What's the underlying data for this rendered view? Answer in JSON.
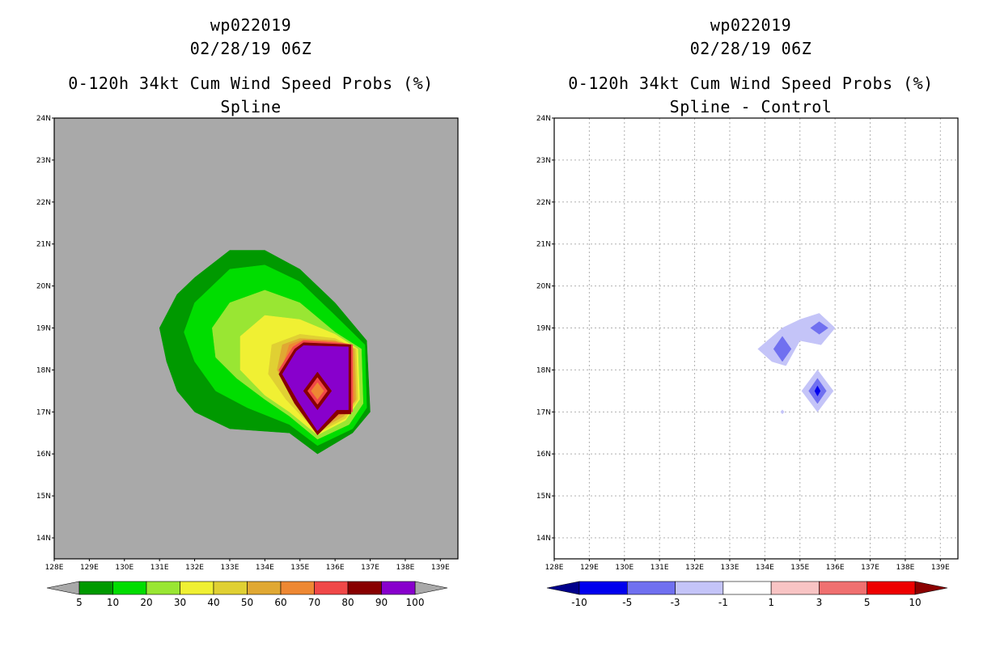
{
  "left_panel": {
    "storm_id": "wp022019",
    "datetime": "02/28/19 06Z",
    "product": "0-120h 34kt Cum Wind Speed Probs (%)",
    "subtitle": "Spline"
  },
  "right_panel": {
    "storm_id": "wp022019",
    "datetime": "02/28/19 06Z",
    "product": "0-120h 34kt Cum Wind Speed Probs (%)",
    "subtitle": "Spline - Control"
  },
  "colors": {
    "land_gray": "#a9a9a9",
    "grid": "#b0b0b0"
  },
  "chart_data": [
    {
      "type": "heatmap",
      "title": "0-120h 34kt Cum Wind Speed Probs (%) Spline",
      "x_ticks": [
        "128E",
        "129E",
        "130E",
        "131E",
        "132E",
        "133E",
        "134E",
        "135E",
        "136E",
        "137E",
        "138E",
        "139E"
      ],
      "y_ticks": [
        "14N",
        "15N",
        "16N",
        "17N",
        "18N",
        "19N",
        "20N",
        "21N",
        "22N",
        "23N",
        "24N"
      ],
      "xlim": [
        128,
        139.5
      ],
      "ylim": [
        13.5,
        24
      ],
      "grid": false,
      "colorbar": {
        "levels": [
          "5",
          "10",
          "20",
          "30",
          "40",
          "50",
          "60",
          "70",
          "80",
          "90",
          "100"
        ],
        "colors": [
          "#009900",
          "#00dd00",
          "#99e633",
          "#f0f033",
          "#e0d033",
          "#e0a833",
          "#ee8833",
          "#f04848",
          "#880000",
          "#8800cc"
        ],
        "lower_color": "#a9a9a9",
        "upper_color": "#a9a9a9"
      },
      "contours": [
        {
          "level": 5,
          "color": "#009900",
          "points": [
            [
              131,
              19
            ],
            [
              131.5,
              19.8
            ],
            [
              132,
              20.2
            ],
            [
              133,
              20.85
            ],
            [
              134,
              20.85
            ],
            [
              135,
              20.4
            ],
            [
              136,
              19.6
            ],
            [
              136.9,
              18.7
            ],
            [
              137,
              17
            ],
            [
              136.5,
              16.5
            ],
            [
              135.5,
              16
            ],
            [
              134.7,
              16.5
            ],
            [
              133,
              16.6
            ],
            [
              132,
              17
            ],
            [
              131.5,
              17.5
            ],
            [
              131.2,
              18.2
            ]
          ]
        },
        {
          "level": 10,
          "color": "#00dd00",
          "points": [
            [
              131.7,
              18.9
            ],
            [
              132,
              19.6
            ],
            [
              133,
              20.4
            ],
            [
              134,
              20.5
            ],
            [
              135,
              20.1
            ],
            [
              136,
              19.3
            ],
            [
              136.85,
              18.6
            ],
            [
              136.9,
              17.1
            ],
            [
              136.5,
              16.6
            ],
            [
              135.5,
              16.2
            ],
            [
              134.7,
              16.7
            ],
            [
              133.5,
              17.1
            ],
            [
              132.6,
              17.5
            ],
            [
              132,
              18.2
            ]
          ]
        },
        {
          "level": 20,
          "color": "#99e633",
          "points": [
            [
              132.5,
              19
            ],
            [
              133,
              19.6
            ],
            [
              134,
              19.9
            ],
            [
              135,
              19.6
            ],
            [
              136,
              18.9
            ],
            [
              136.75,
              18.5
            ],
            [
              136.8,
              17.2
            ],
            [
              136.4,
              16.7
            ],
            [
              135.5,
              16.35
            ],
            [
              134.7,
              16.9
            ],
            [
              134,
              17.3
            ],
            [
              133.2,
              17.8
            ],
            [
              132.6,
              18.3
            ]
          ]
        },
        {
          "level": 30,
          "color": "#f0f033",
          "points": [
            [
              133.3,
              18.8
            ],
            [
              134,
              19.3
            ],
            [
              135,
              19.2
            ],
            [
              136,
              18.85
            ],
            [
              136.65,
              18.5
            ],
            [
              136.7,
              17.3
            ],
            [
              136.3,
              16.8
            ],
            [
              135.5,
              16.45
            ],
            [
              134.7,
              17
            ],
            [
              134,
              17.4
            ],
            [
              133.3,
              18
            ]
          ]
        },
        {
          "level": 40,
          "color": "#e0d033",
          "points": [
            [
              134.2,
              18.6
            ],
            [
              135,
              18.85
            ],
            [
              136,
              18.75
            ],
            [
              136.6,
              18.5
            ],
            [
              136.65,
              17.3
            ],
            [
              136.3,
              16.85
            ],
            [
              135.5,
              16.5
            ],
            [
              134.6,
              17.3
            ],
            [
              134.1,
              17.9
            ]
          ]
        },
        {
          "level": 50,
          "color": "#e0a833",
          "points": [
            [
              134.5,
              18.6
            ],
            [
              135,
              18.75
            ],
            [
              136,
              18.7
            ],
            [
              136.55,
              18.5
            ],
            [
              136.6,
              17.3
            ],
            [
              136.25,
              16.9
            ],
            [
              135.5,
              16.55
            ],
            [
              134.8,
              17.3
            ],
            [
              134.35,
              18
            ]
          ]
        },
        {
          "level": 60,
          "color": "#ee8833",
          "points": [
            [
              134.7,
              18.6
            ],
            [
              135.1,
              18.72
            ],
            [
              136,
              18.68
            ],
            [
              136.5,
              18.6
            ],
            [
              136.55,
              17.25
            ],
            [
              136.2,
              16.95
            ],
            [
              135.5,
              16.6
            ],
            [
              134.8,
              17.3
            ],
            [
              134.45,
              17.95
            ]
          ]
        },
        {
          "level": 70,
          "color": "#f04848",
          "points": [
            [
              134.8,
              18.55
            ],
            [
              135.1,
              18.7
            ],
            [
              136,
              18.65
            ],
            [
              136.5,
              18.6
            ],
            [
              136.5,
              17
            ],
            [
              136.15,
              16.98
            ],
            [
              135.5,
              16.65
            ],
            [
              134.8,
              17.3
            ],
            [
              134.4,
              18
            ]
          ]
        },
        {
          "level": 80,
          "color": "#880000",
          "points": [
            [
              134.85,
              18.5
            ],
            [
              135.1,
              18.65
            ],
            [
              136.45,
              18.6
            ],
            [
              136.45,
              16.95
            ],
            [
              136.1,
              16.95
            ],
            [
              135.5,
              16.45
            ],
            [
              134.85,
              17.2
            ],
            [
              134.4,
              17.9
            ]
          ]
        },
        {
          "level": 90,
          "color": "#8800cc",
          "points": [
            [
              134.9,
              18.45
            ],
            [
              135.1,
              18.58
            ],
            [
              136.38,
              18.55
            ],
            [
              136.38,
              17.05
            ],
            [
              136.05,
              17.05
            ],
            [
              135.5,
              16.55
            ],
            [
              134.95,
              17.25
            ],
            [
              134.5,
              17.9
            ]
          ]
        },
        {
          "level": 80,
          "color": "#880000",
          "points": [
            [
              135.5,
              17.95
            ],
            [
              135.9,
              17.5
            ],
            [
              135.5,
              17.05
            ],
            [
              135.1,
              17.5
            ]
          ]
        },
        {
          "level": 70,
          "color": "#f04848",
          "points": [
            [
              135.5,
              17.82
            ],
            [
              135.78,
              17.5
            ],
            [
              135.5,
              17.18
            ],
            [
              135.22,
              17.5
            ]
          ]
        },
        {
          "level": 60,
          "color": "#ee8833",
          "points": [
            [
              135.5,
              17.7
            ],
            [
              135.68,
              17.5
            ],
            [
              135.5,
              17.3
            ],
            [
              135.32,
              17.5
            ]
          ]
        }
      ]
    },
    {
      "type": "heatmap",
      "title": "0-120h 34kt Cum Wind Speed Probs (%) Spline - Control",
      "x_ticks": [
        "128E",
        "129E",
        "130E",
        "131E",
        "132E",
        "133E",
        "134E",
        "135E",
        "136E",
        "137E",
        "138E",
        "139E"
      ],
      "y_ticks": [
        "14N",
        "15N",
        "16N",
        "17N",
        "18N",
        "19N",
        "20N",
        "21N",
        "22N",
        "23N",
        "24N"
      ],
      "xlim": [
        128,
        139.5
      ],
      "ylim": [
        13.5,
        24
      ],
      "grid": true,
      "colorbar": {
        "levels": [
          "-10",
          "-5",
          "-3",
          "-1",
          "1",
          "3",
          "5",
          "10"
        ],
        "colors": [
          "#0000ee",
          "#7070f0",
          "#c4c4f8",
          "#ffffff",
          "#f8c4c4",
          "#f07070",
          "#ee0000"
        ],
        "lower_color": "#00008b",
        "upper_color": "#8b0000"
      },
      "contours": [
        {
          "level": -1,
          "color": "#c4c4f8",
          "points": [
            [
              133.8,
              18.5
            ],
            [
              134.5,
              19
            ],
            [
              135,
              19.2
            ],
            [
              135.55,
              19.35
            ],
            [
              136,
              19
            ],
            [
              135.6,
              18.6
            ],
            [
              135,
              18.7
            ],
            [
              134.6,
              18.1
            ],
            [
              134.2,
              18.2
            ]
          ]
        },
        {
          "level": -3,
          "color": "#7070f0",
          "points": [
            [
              134.5,
              18.8
            ],
            [
              134.75,
              18.5
            ],
            [
              134.5,
              18.2
            ],
            [
              134.25,
              18.5
            ]
          ]
        },
        {
          "level": -3,
          "color": "#7070f0",
          "points": [
            [
              135.55,
              19.15
            ],
            [
              135.8,
              19
            ],
            [
              135.55,
              18.85
            ],
            [
              135.3,
              19
            ]
          ]
        },
        {
          "level": -1,
          "color": "#c4c4f8",
          "points": [
            [
              135.5,
              18
            ],
            [
              135.95,
              17.5
            ],
            [
              135.5,
              17
            ],
            [
              135.05,
              17.5
            ]
          ]
        },
        {
          "level": -3,
          "color": "#7070f0",
          "points": [
            [
              135.5,
              17.8
            ],
            [
              135.75,
              17.5
            ],
            [
              135.5,
              17.2
            ],
            [
              135.25,
              17.5
            ]
          ]
        },
        {
          "level": -5,
          "color": "#0000ee",
          "points": [
            [
              135.5,
              17.62
            ],
            [
              135.58,
              17.5
            ],
            [
              135.5,
              17.38
            ],
            [
              135.42,
              17.5
            ]
          ]
        },
        {
          "level": -1,
          "color": "#c4c4f8",
          "points": [
            [
              134.5,
              17.05
            ],
            [
              134.55,
              17
            ],
            [
              134.5,
              16.95
            ],
            [
              134.45,
              17
            ]
          ]
        }
      ]
    }
  ]
}
